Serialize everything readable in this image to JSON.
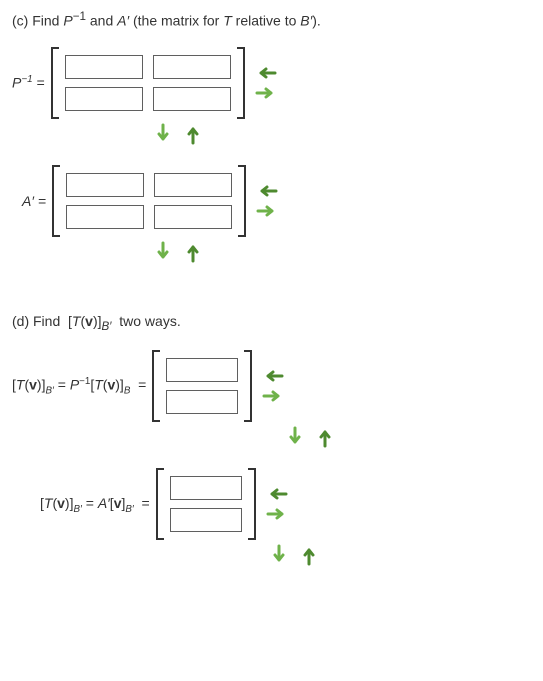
{
  "partC": {
    "prompt_html": "(c) Find <i>P</i><sup>−1</sup> and <i>A′</i> (the matrix for <i>T</i> relative to <i>B′</i>).",
    "pinv_label_html": "<i>P</i><sup>−1</sup> =",
    "aprime_label_html": "<i>A′</i> =",
    "matrix_rows": 2,
    "matrix_cols": 2
  },
  "partD": {
    "prompt_html": "(d) Find &nbsp;[<i>T</i>(<b>v</b>)]<sub><i>B′</i></sub>&nbsp; two ways.",
    "eq1_label_html": "[<i>T</i>(<b>v</b>)]<sub><i>B′</i></sub> = <i>P</i><sup>−1</sup>[<i>T</i>(<b>v</b>)]<sub><i>B</i></sub> &nbsp;=",
    "eq2_label_html": "[<i>T</i>(<b>v</b>)]<sub><i>B′</i></sub> = <i>A′</i>[<b>v</b>]<sub><i>B′</i></sub> &nbsp;=",
    "matrix_rows": 2,
    "matrix_cols": 1
  },
  "colors": {
    "arrow_green": "#6fb24a",
    "arrow_green_dark": "#4e8a2f",
    "border": "#333333"
  }
}
